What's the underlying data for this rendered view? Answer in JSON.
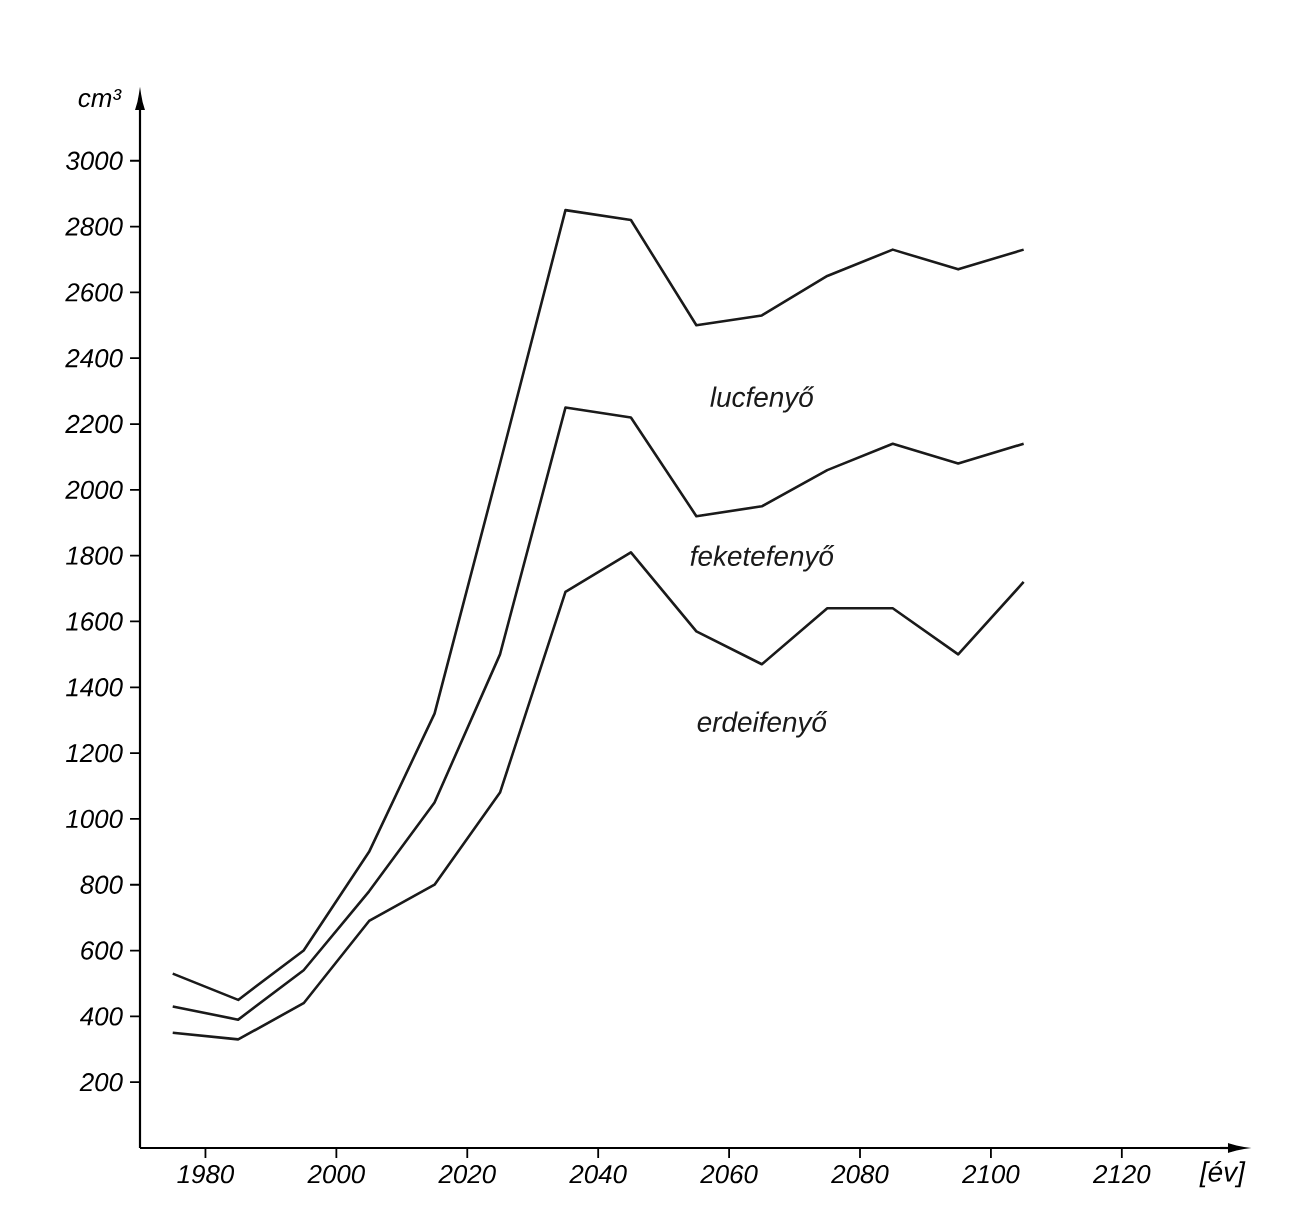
{
  "chart_data": {
    "type": "line",
    "xlabel": "[év]",
    "ylabel": "cm³",
    "x": [
      1975,
      1985,
      1995,
      2005,
      2015,
      2025,
      2035,
      2045,
      2055,
      2065,
      2075,
      2085,
      2095,
      2105
    ],
    "series": [
      {
        "name": "lucfenyő",
        "color": "#1a1a1a",
        "values": [
          530,
          450,
          600,
          900,
          1320,
          2080,
          2850,
          2820,
          2500,
          2530,
          2650,
          2730,
          2670,
          2730
        ]
      },
      {
        "name": "feketefenyő",
        "color": "#1a1a1a",
        "values": [
          430,
          390,
          540,
          780,
          1050,
          1500,
          2250,
          2220,
          1920,
          1950,
          2060,
          2140,
          2080,
          2140
        ]
      },
      {
        "name": "erdeifenyő",
        "color": "#1a1a1a",
        "values": [
          350,
          330,
          440,
          690,
          800,
          1080,
          1690,
          1810,
          1570,
          1470,
          1640,
          1640,
          1500,
          1720
        ]
      }
    ],
    "xlim": [
      1970,
      2135
    ],
    "ylim": [
      0,
      3130
    ],
    "xticks": [
      1980,
      2000,
      2020,
      2040,
      2060,
      2080,
      2100,
      2120
    ],
    "yticks": [
      200,
      400,
      600,
      800,
      1000,
      1200,
      1400,
      1600,
      1800,
      2000,
      2200,
      2400,
      2600,
      2800,
      3000
    ],
    "grid": false,
    "legend": false,
    "marker": "none",
    "line_style": "solid"
  }
}
